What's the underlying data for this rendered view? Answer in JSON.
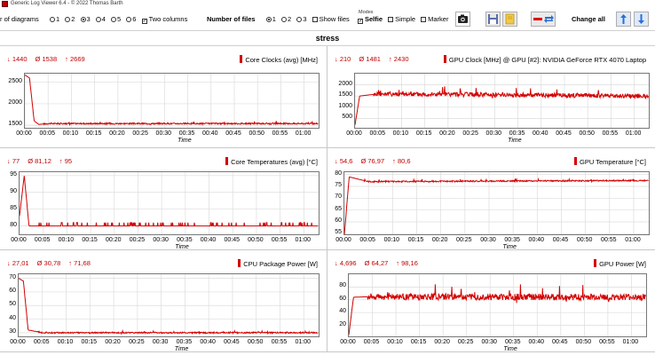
{
  "titlebar": {
    "title": "Generic Log Viewer 6.4 - © 2022 Thomas Barth"
  },
  "toolbar": {
    "diagrams_label": "r of diagrams",
    "diagram_options": [
      "1",
      "2",
      "3",
      "4",
      "5",
      "6"
    ],
    "diagram_selected": "3",
    "two_columns": "Two columns",
    "files_label": "Number of files",
    "file_options": [
      "1",
      "2",
      "3"
    ],
    "file_selected": "1",
    "show_files": "Show files",
    "modes_label": "Modes",
    "selfie": "Selfie",
    "simple": "Simple",
    "marker": "Marker",
    "change_all": "Change all"
  },
  "section_title": "stress",
  "colors": {
    "series": "#d40000",
    "grid": "#dcdcdc",
    "stats": "#c00000"
  },
  "x_ticks": [
    "00:00",
    "00:05",
    "00:10",
    "00:15",
    "00:20",
    "00:25",
    "00:30",
    "00:35",
    "00:40",
    "00:45",
    "00:50",
    "00:55",
    "01:00"
  ],
  "x_label": "Time",
  "panels": [
    {
      "id": "core-clocks",
      "title": "Core Clocks (avg) [MHz]",
      "min": "↓ 1440",
      "avg": "Ø 1538",
      "max": "↑ 2669",
      "yticks": [
        "2500",
        "2000",
        "1500"
      ]
    },
    {
      "id": "gpu-clock",
      "title": "GPU Clock [MHz] @ GPU [#2]: NVIDIA GeForce RTX 4070 Laptop",
      "min": "↓ 210",
      "avg": "Ø 1481",
      "max": "↑ 2430",
      "yticks": [
        "2000",
        "1500",
        "1000",
        "500"
      ]
    },
    {
      "id": "core-temps",
      "title": "Core Temperatures (avg) [°C]",
      "min": "↓ 77",
      "avg": "Ø 81,12",
      "max": "↑ 95",
      "yticks": [
        "95",
        "90",
        "85",
        "80"
      ]
    },
    {
      "id": "gpu-temp",
      "title": "GPU Temperature [°C]",
      "min": "↓ 54,6",
      "avg": "Ø 76,97",
      "max": "↑ 80,6",
      "yticks": [
        "80",
        "75",
        "70",
        "65",
        "60",
        "55"
      ]
    },
    {
      "id": "cpu-power",
      "title": "CPU Package Power [W]",
      "min": "↓ 27,01",
      "avg": "Ø 30,78",
      "max": "↑ 71,68",
      "yticks": [
        "70",
        "60",
        "50",
        "40",
        "30"
      ]
    },
    {
      "id": "gpu-power",
      "title": "GPU Power [W]",
      "min": "↓ 4,696",
      "avg": "Ø 64,27",
      "max": "↑ 98,16",
      "yticks": [
        "80",
        "60",
        "40",
        "20"
      ]
    }
  ],
  "chart_data": [
    {
      "type": "line",
      "title": "Core Clocks (avg) [MHz]",
      "xlabel": "Time",
      "ylim": [
        1400,
        2700
      ],
      "x": [
        "00:00",
        "00:01",
        "00:02",
        "00:03",
        "00:05",
        "01:03"
      ],
      "series": [
        {
          "name": "Core Clocks (avg) [MHz]",
          "values": [
            2669,
            2600,
            1600,
            1520,
            1540,
            1540
          ]
        }
      ]
    },
    {
      "type": "line",
      "title": "GPU Clock [MHz] @ GPU [#2]: NVIDIA GeForce RTX 4070 Laptop",
      "xlabel": "Time",
      "ylim": [
        0,
        2500
      ],
      "x": [
        "00:00",
        "00:01",
        "00:05",
        "01:03"
      ],
      "series": [
        {
          "name": "GPU Clock [MHz] @ GPU [#2]: NVIDIA GeForce RTX 4070 Laptop",
          "values": [
            210,
            1500,
            1600,
            1500
          ]
        }
      ]
    },
    {
      "type": "line",
      "title": "Core Temperatures (avg) [°C]",
      "xlabel": "Time",
      "ylim": [
        77,
        96
      ],
      "x": [
        "00:00",
        "00:01",
        "00:02",
        "00:05",
        "01:03"
      ],
      "series": [
        {
          "name": "Core Temperatures (avg) [°C]",
          "values": [
            83,
            95,
            80,
            80,
            80
          ]
        }
      ]
    },
    {
      "type": "line",
      "title": "GPU Temperature [°C]",
      "xlabel": "Time",
      "ylim": [
        54,
        81
      ],
      "x": [
        "00:00",
        "00:01",
        "00:05",
        "01:03"
      ],
      "series": [
        {
          "name": "GPU Temperature [°C]",
          "values": [
            54.6,
            79,
            77,
            77.5
          ]
        }
      ]
    },
    {
      "type": "line",
      "title": "CPU Package Power [W]",
      "xlabel": "Time",
      "ylim": [
        26,
        73
      ],
      "x": [
        "00:00",
        "00:01",
        "00:02",
        "00:05",
        "01:03"
      ],
      "series": [
        {
          "name": "CPU Package Power [W]",
          "values": [
            70,
            68,
            32,
            30,
            30
          ]
        }
      ]
    },
    {
      "type": "line",
      "title": "GPU Power [W]",
      "xlabel": "Time",
      "ylim": [
        0,
        100
      ],
      "x": [
        "00:00",
        "00:01",
        "00:05",
        "01:03"
      ],
      "series": [
        {
          "name": "GPU Power [W]",
          "values": [
            5,
            64,
            65,
            64
          ]
        }
      ]
    }
  ]
}
